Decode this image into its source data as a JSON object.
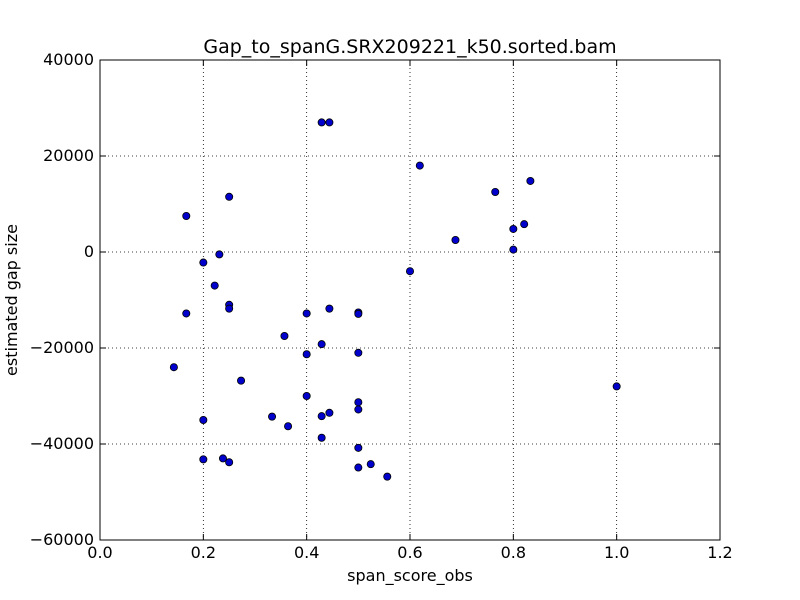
{
  "chart_data": {
    "type": "scatter",
    "title": "Gap_to_spanG.SRX209221_k50.sorted.bam",
    "xlabel": "span_score_obs",
    "ylabel": "estimated gap size",
    "xlim": [
      0.0,
      1.2
    ],
    "ylim": [
      -60000,
      40000
    ],
    "xticks": [
      "0.0",
      "0.2",
      "0.4",
      "0.6",
      "0.8",
      "1.0",
      "1.2"
    ],
    "yticks": [
      "−60000",
      "−40000",
      "−20000",
      "0",
      "20000",
      "40000"
    ],
    "grid": true,
    "marker_color": "#0000cc",
    "points": [
      {
        "x": 0.143,
        "y": -24000
      },
      {
        "x": 0.167,
        "y": 7500
      },
      {
        "x": 0.167,
        "y": -12800
      },
      {
        "x": 0.2,
        "y": -2200
      },
      {
        "x": 0.2,
        "y": -35000
      },
      {
        "x": 0.2,
        "y": -43200
      },
      {
        "x": 0.222,
        "y": -7000
      },
      {
        "x": 0.231,
        "y": -500
      },
      {
        "x": 0.238,
        "y": -43000
      },
      {
        "x": 0.25,
        "y": 11500
      },
      {
        "x": 0.25,
        "y": -11000
      },
      {
        "x": 0.25,
        "y": -11800
      },
      {
        "x": 0.25,
        "y": -43800
      },
      {
        "x": 0.273,
        "y": -26800
      },
      {
        "x": 0.333,
        "y": -34300
      },
      {
        "x": 0.357,
        "y": -17500
      },
      {
        "x": 0.364,
        "y": -36300
      },
      {
        "x": 0.4,
        "y": -12800
      },
      {
        "x": 0.4,
        "y": -21300
      },
      {
        "x": 0.4,
        "y": -30000
      },
      {
        "x": 0.429,
        "y": 27000
      },
      {
        "x": 0.429,
        "y": -19200
      },
      {
        "x": 0.429,
        "y": -34200
      },
      {
        "x": 0.429,
        "y": -38700
      },
      {
        "x": 0.444,
        "y": 27000
      },
      {
        "x": 0.444,
        "y": -11800
      },
      {
        "x": 0.444,
        "y": -33500
      },
      {
        "x": 0.5,
        "y": -12600
      },
      {
        "x": 0.5,
        "y": -12900
      },
      {
        "x": 0.5,
        "y": -21000
      },
      {
        "x": 0.5,
        "y": -31300
      },
      {
        "x": 0.5,
        "y": -32800
      },
      {
        "x": 0.5,
        "y": -40800
      },
      {
        "x": 0.5,
        "y": -44900
      },
      {
        "x": 0.524,
        "y": -44200
      },
      {
        "x": 0.556,
        "y": -46800
      },
      {
        "x": 0.6,
        "y": -4000
      },
      {
        "x": 0.619,
        "y": 18000
      },
      {
        "x": 0.688,
        "y": 2500
      },
      {
        "x": 0.765,
        "y": 12500
      },
      {
        "x": 0.8,
        "y": 4800
      },
      {
        "x": 0.8,
        "y": 500
      },
      {
        "x": 0.821,
        "y": 5800
      },
      {
        "x": 0.833,
        "y": 14800
      },
      {
        "x": 1.0,
        "y": -28000
      }
    ]
  }
}
